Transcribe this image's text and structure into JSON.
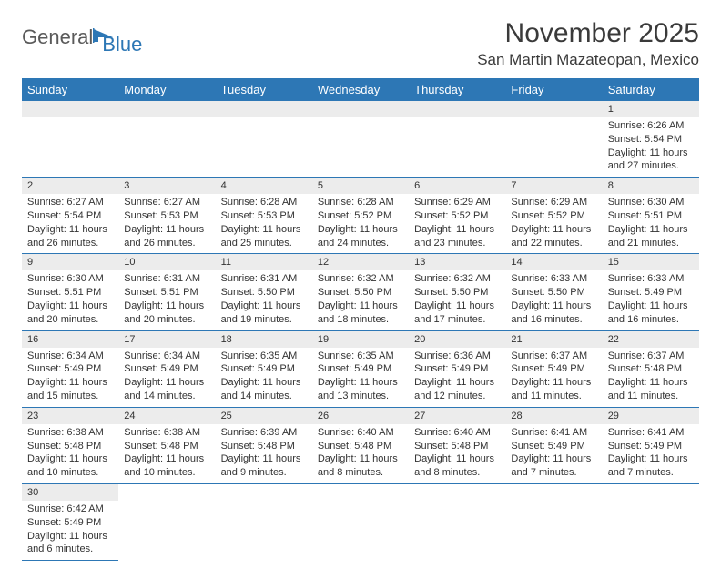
{
  "logo": {
    "text1": "General",
    "text2": "Blue"
  },
  "title": "November 2025",
  "location": "San Martin Mazateopan, Mexico",
  "colors": {
    "header_bg": "#2d77b5",
    "header_text": "#ffffff",
    "daynum_bg": "#ececec",
    "cell_border": "#2d77b5",
    "body_text": "#333333",
    "logo_gray": "#5a5a5a",
    "logo_blue": "#2d77b5"
  },
  "weekdays": [
    "Sunday",
    "Monday",
    "Tuesday",
    "Wednesday",
    "Thursday",
    "Friday",
    "Saturday"
  ],
  "weeks": [
    [
      null,
      null,
      null,
      null,
      null,
      null,
      {
        "n": "1",
        "sr": "Sunrise: 6:26 AM",
        "ss": "Sunset: 5:54 PM",
        "dl": "Daylight: 11 hours and 27 minutes."
      }
    ],
    [
      {
        "n": "2",
        "sr": "Sunrise: 6:27 AM",
        "ss": "Sunset: 5:54 PM",
        "dl": "Daylight: 11 hours and 26 minutes."
      },
      {
        "n": "3",
        "sr": "Sunrise: 6:27 AM",
        "ss": "Sunset: 5:53 PM",
        "dl": "Daylight: 11 hours and 26 minutes."
      },
      {
        "n": "4",
        "sr": "Sunrise: 6:28 AM",
        "ss": "Sunset: 5:53 PM",
        "dl": "Daylight: 11 hours and 25 minutes."
      },
      {
        "n": "5",
        "sr": "Sunrise: 6:28 AM",
        "ss": "Sunset: 5:52 PM",
        "dl": "Daylight: 11 hours and 24 minutes."
      },
      {
        "n": "6",
        "sr": "Sunrise: 6:29 AM",
        "ss": "Sunset: 5:52 PM",
        "dl": "Daylight: 11 hours and 23 minutes."
      },
      {
        "n": "7",
        "sr": "Sunrise: 6:29 AM",
        "ss": "Sunset: 5:52 PM",
        "dl": "Daylight: 11 hours and 22 minutes."
      },
      {
        "n": "8",
        "sr": "Sunrise: 6:30 AM",
        "ss": "Sunset: 5:51 PM",
        "dl": "Daylight: 11 hours and 21 minutes."
      }
    ],
    [
      {
        "n": "9",
        "sr": "Sunrise: 6:30 AM",
        "ss": "Sunset: 5:51 PM",
        "dl": "Daylight: 11 hours and 20 minutes."
      },
      {
        "n": "10",
        "sr": "Sunrise: 6:31 AM",
        "ss": "Sunset: 5:51 PM",
        "dl": "Daylight: 11 hours and 20 minutes."
      },
      {
        "n": "11",
        "sr": "Sunrise: 6:31 AM",
        "ss": "Sunset: 5:50 PM",
        "dl": "Daylight: 11 hours and 19 minutes."
      },
      {
        "n": "12",
        "sr": "Sunrise: 6:32 AM",
        "ss": "Sunset: 5:50 PM",
        "dl": "Daylight: 11 hours and 18 minutes."
      },
      {
        "n": "13",
        "sr": "Sunrise: 6:32 AM",
        "ss": "Sunset: 5:50 PM",
        "dl": "Daylight: 11 hours and 17 minutes."
      },
      {
        "n": "14",
        "sr": "Sunrise: 6:33 AM",
        "ss": "Sunset: 5:50 PM",
        "dl": "Daylight: 11 hours and 16 minutes."
      },
      {
        "n": "15",
        "sr": "Sunrise: 6:33 AM",
        "ss": "Sunset: 5:49 PM",
        "dl": "Daylight: 11 hours and 16 minutes."
      }
    ],
    [
      {
        "n": "16",
        "sr": "Sunrise: 6:34 AM",
        "ss": "Sunset: 5:49 PM",
        "dl": "Daylight: 11 hours and 15 minutes."
      },
      {
        "n": "17",
        "sr": "Sunrise: 6:34 AM",
        "ss": "Sunset: 5:49 PM",
        "dl": "Daylight: 11 hours and 14 minutes."
      },
      {
        "n": "18",
        "sr": "Sunrise: 6:35 AM",
        "ss": "Sunset: 5:49 PM",
        "dl": "Daylight: 11 hours and 14 minutes."
      },
      {
        "n": "19",
        "sr": "Sunrise: 6:35 AM",
        "ss": "Sunset: 5:49 PM",
        "dl": "Daylight: 11 hours and 13 minutes."
      },
      {
        "n": "20",
        "sr": "Sunrise: 6:36 AM",
        "ss": "Sunset: 5:49 PM",
        "dl": "Daylight: 11 hours and 12 minutes."
      },
      {
        "n": "21",
        "sr": "Sunrise: 6:37 AM",
        "ss": "Sunset: 5:49 PM",
        "dl": "Daylight: 11 hours and 11 minutes."
      },
      {
        "n": "22",
        "sr": "Sunrise: 6:37 AM",
        "ss": "Sunset: 5:48 PM",
        "dl": "Daylight: 11 hours and 11 minutes."
      }
    ],
    [
      {
        "n": "23",
        "sr": "Sunrise: 6:38 AM",
        "ss": "Sunset: 5:48 PM",
        "dl": "Daylight: 11 hours and 10 minutes."
      },
      {
        "n": "24",
        "sr": "Sunrise: 6:38 AM",
        "ss": "Sunset: 5:48 PM",
        "dl": "Daylight: 11 hours and 10 minutes."
      },
      {
        "n": "25",
        "sr": "Sunrise: 6:39 AM",
        "ss": "Sunset: 5:48 PM",
        "dl": "Daylight: 11 hours and 9 minutes."
      },
      {
        "n": "26",
        "sr": "Sunrise: 6:40 AM",
        "ss": "Sunset: 5:48 PM",
        "dl": "Daylight: 11 hours and 8 minutes."
      },
      {
        "n": "27",
        "sr": "Sunrise: 6:40 AM",
        "ss": "Sunset: 5:48 PM",
        "dl": "Daylight: 11 hours and 8 minutes."
      },
      {
        "n": "28",
        "sr": "Sunrise: 6:41 AM",
        "ss": "Sunset: 5:49 PM",
        "dl": "Daylight: 11 hours and 7 minutes."
      },
      {
        "n": "29",
        "sr": "Sunrise: 6:41 AM",
        "ss": "Sunset: 5:49 PM",
        "dl": "Daylight: 11 hours and 7 minutes."
      }
    ],
    [
      {
        "n": "30",
        "sr": "Sunrise: 6:42 AM",
        "ss": "Sunset: 5:49 PM",
        "dl": "Daylight: 11 hours and 6 minutes."
      },
      null,
      null,
      null,
      null,
      null,
      null
    ]
  ]
}
